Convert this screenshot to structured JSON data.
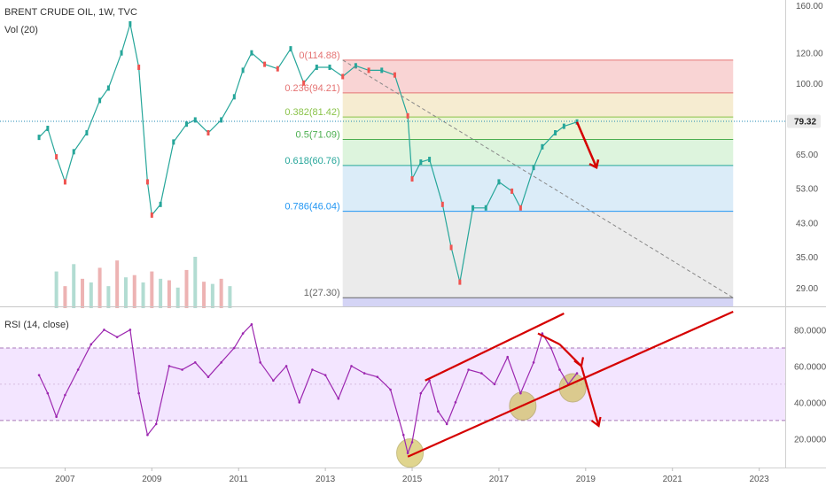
{
  "header": {
    "title": "BRENT CRUDE OIL, 1W, TVC",
    "volume_label": "Vol (20)",
    "rsi_label": "RSI (14, close)"
  },
  "price_axis": {
    "ticks": [
      "160.00",
      "120.00",
      "100.00",
      "79.32",
      "65.00",
      "53.00",
      "43.00",
      "35.00",
      "29.00"
    ],
    "current_price": "79.32"
  },
  "rsi_axis": {
    "ticks": [
      "80.0000",
      "60.0000",
      "40.0000",
      "20.0000"
    ]
  },
  "time_axis": {
    "ticks": [
      "2007",
      "2009",
      "2011",
      "2013",
      "2015",
      "2017",
      "2019",
      "2021",
      "2023"
    ]
  },
  "fib_levels": [
    {
      "label": "0(114.88)",
      "color": "#e57373"
    },
    {
      "label": "0.236(94.21)",
      "color": "#e57373"
    },
    {
      "label": "0.382(81.42)",
      "color": "#8bc34a"
    },
    {
      "label": "0.5(71.09)",
      "color": "#4caf50"
    },
    {
      "label": "0.618(60.76)",
      "color": "#26a69a"
    },
    {
      "label": "0.786(46.04)",
      "color": "#2196f3"
    },
    {
      "label": "1(27.30)",
      "color": "#666666"
    }
  ],
  "colors": {
    "up": "#26a69a",
    "down": "#ef5350",
    "rsi_line": "#9c27b0",
    "rsi_band": "#f3e5ff",
    "arrow": "#d50000",
    "circle": "#c8b432"
  },
  "chart_data": {
    "type": "line",
    "symbol": "BRENT CRUDE OIL",
    "interval": "1W",
    "price_series": {
      "x": [
        2006.4,
        2006.6,
        2006.8,
        2007.0,
        2007.2,
        2007.5,
        2007.8,
        2008.0,
        2008.3,
        2008.5,
        2008.7,
        2008.9,
        2009.0,
        2009.2,
        2009.5,
        2009.8,
        2010.0,
        2010.3,
        2010.6,
        2010.9,
        2011.1,
        2011.3,
        2011.6,
        2011.9,
        2012.2,
        2012.5,
        2012.8,
        2013.1,
        2013.4,
        2013.7,
        2014.0,
        2014.3,
        2014.6,
        2014.9,
        2015.0,
        2015.2,
        2015.4,
        2015.7,
        2015.9,
        2016.1,
        2016.4,
        2016.7,
        2017.0,
        2017.3,
        2017.5,
        2017.8,
        2018.0,
        2018.3,
        2018.5,
        2018.8
      ],
      "values": [
        72,
        76,
        64,
        55,
        66,
        74,
        90,
        97,
        120,
        143,
        110,
        55,
        45,
        48,
        70,
        78,
        80,
        74,
        80,
        92,
        108,
        120,
        112,
        109,
        123,
        100,
        110,
        110,
        104,
        111,
        108,
        108,
        105,
        82,
        56,
        62,
        63,
        48,
        37,
        30,
        47,
        47,
        55,
        52,
        47,
        60,
        68,
        74,
        77,
        79
      ]
    },
    "rsi_series": {
      "x": [
        2006.4,
        2006.6,
        2006.8,
        2007.0,
        2007.3,
        2007.6,
        2007.9,
        2008.2,
        2008.5,
        2008.7,
        2008.9,
        2009.1,
        2009.4,
        2009.7,
        2010.0,
        2010.3,
        2010.6,
        2010.9,
        2011.1,
        2011.3,
        2011.5,
        2011.8,
        2012.1,
        2012.4,
        2012.7,
        2013.0,
        2013.3,
        2013.6,
        2013.9,
        2014.2,
        2014.5,
        2014.8,
        2014.9,
        2015.0,
        2015.2,
        2015.4,
        2015.6,
        2015.8,
        2016.0,
        2016.3,
        2016.6,
        2016.9,
        2017.2,
        2017.5,
        2017.8,
        2018.0,
        2018.2,
        2018.4,
        2018.6,
        2018.8
      ],
      "values": [
        55,
        45,
        32,
        44,
        58,
        72,
        80,
        76,
        80,
        45,
        22,
        28,
        60,
        58,
        62,
        54,
        62,
        70,
        78,
        83,
        62,
        52,
        60,
        40,
        58,
        55,
        42,
        60,
        56,
        54,
        47,
        22,
        12,
        18,
        45,
        52,
        35,
        28,
        40,
        58,
        56,
        50,
        65,
        45,
        62,
        78,
        70,
        58,
        50,
        56
      ]
    },
    "volume_series": {
      "note": "Vol (20)",
      "x": [
        2006.8,
        2007.0,
        2007.2,
        2007.4,
        2007.6,
        2007.8,
        2008.0,
        2008.2,
        2008.4,
        2008.6,
        2008.8,
        2009.0,
        2009.2,
        2009.4,
        2009.6,
        2009.8,
        2010.0,
        2010.2,
        2010.4,
        2010.6,
        2010.8
      ],
      "values": [
        50,
        30,
        60,
        40,
        35,
        55,
        30,
        65,
        42,
        45,
        35,
        50,
        40,
        38,
        28,
        52,
        70,
        36,
        33,
        40,
        30
      ]
    },
    "fibonacci_retracement": {
      "x_start": 2013.4,
      "x_end": 2022.4,
      "levels": [
        {
          "ratio": 0,
          "price": 114.88
        },
        {
          "ratio": 0.236,
          "price": 94.21
        },
        {
          "ratio": 0.382,
          "price": 81.42
        },
        {
          "ratio": 0.5,
          "price": 71.09
        },
        {
          "ratio": 0.618,
          "price": 60.76
        },
        {
          "ratio": 0.786,
          "price": 46.04
        },
        {
          "ratio": 1,
          "price": 27.3
        }
      ]
    },
    "rsi_bands": {
      "upper": 70,
      "lower": 30
    },
    "xlim": [
      2005.5,
      2023.6
    ],
    "price_scale": "log",
    "ylim_price": [
      27.3,
      160
    ],
    "ylim_rsi": [
      5,
      90
    ],
    "grid": false
  }
}
